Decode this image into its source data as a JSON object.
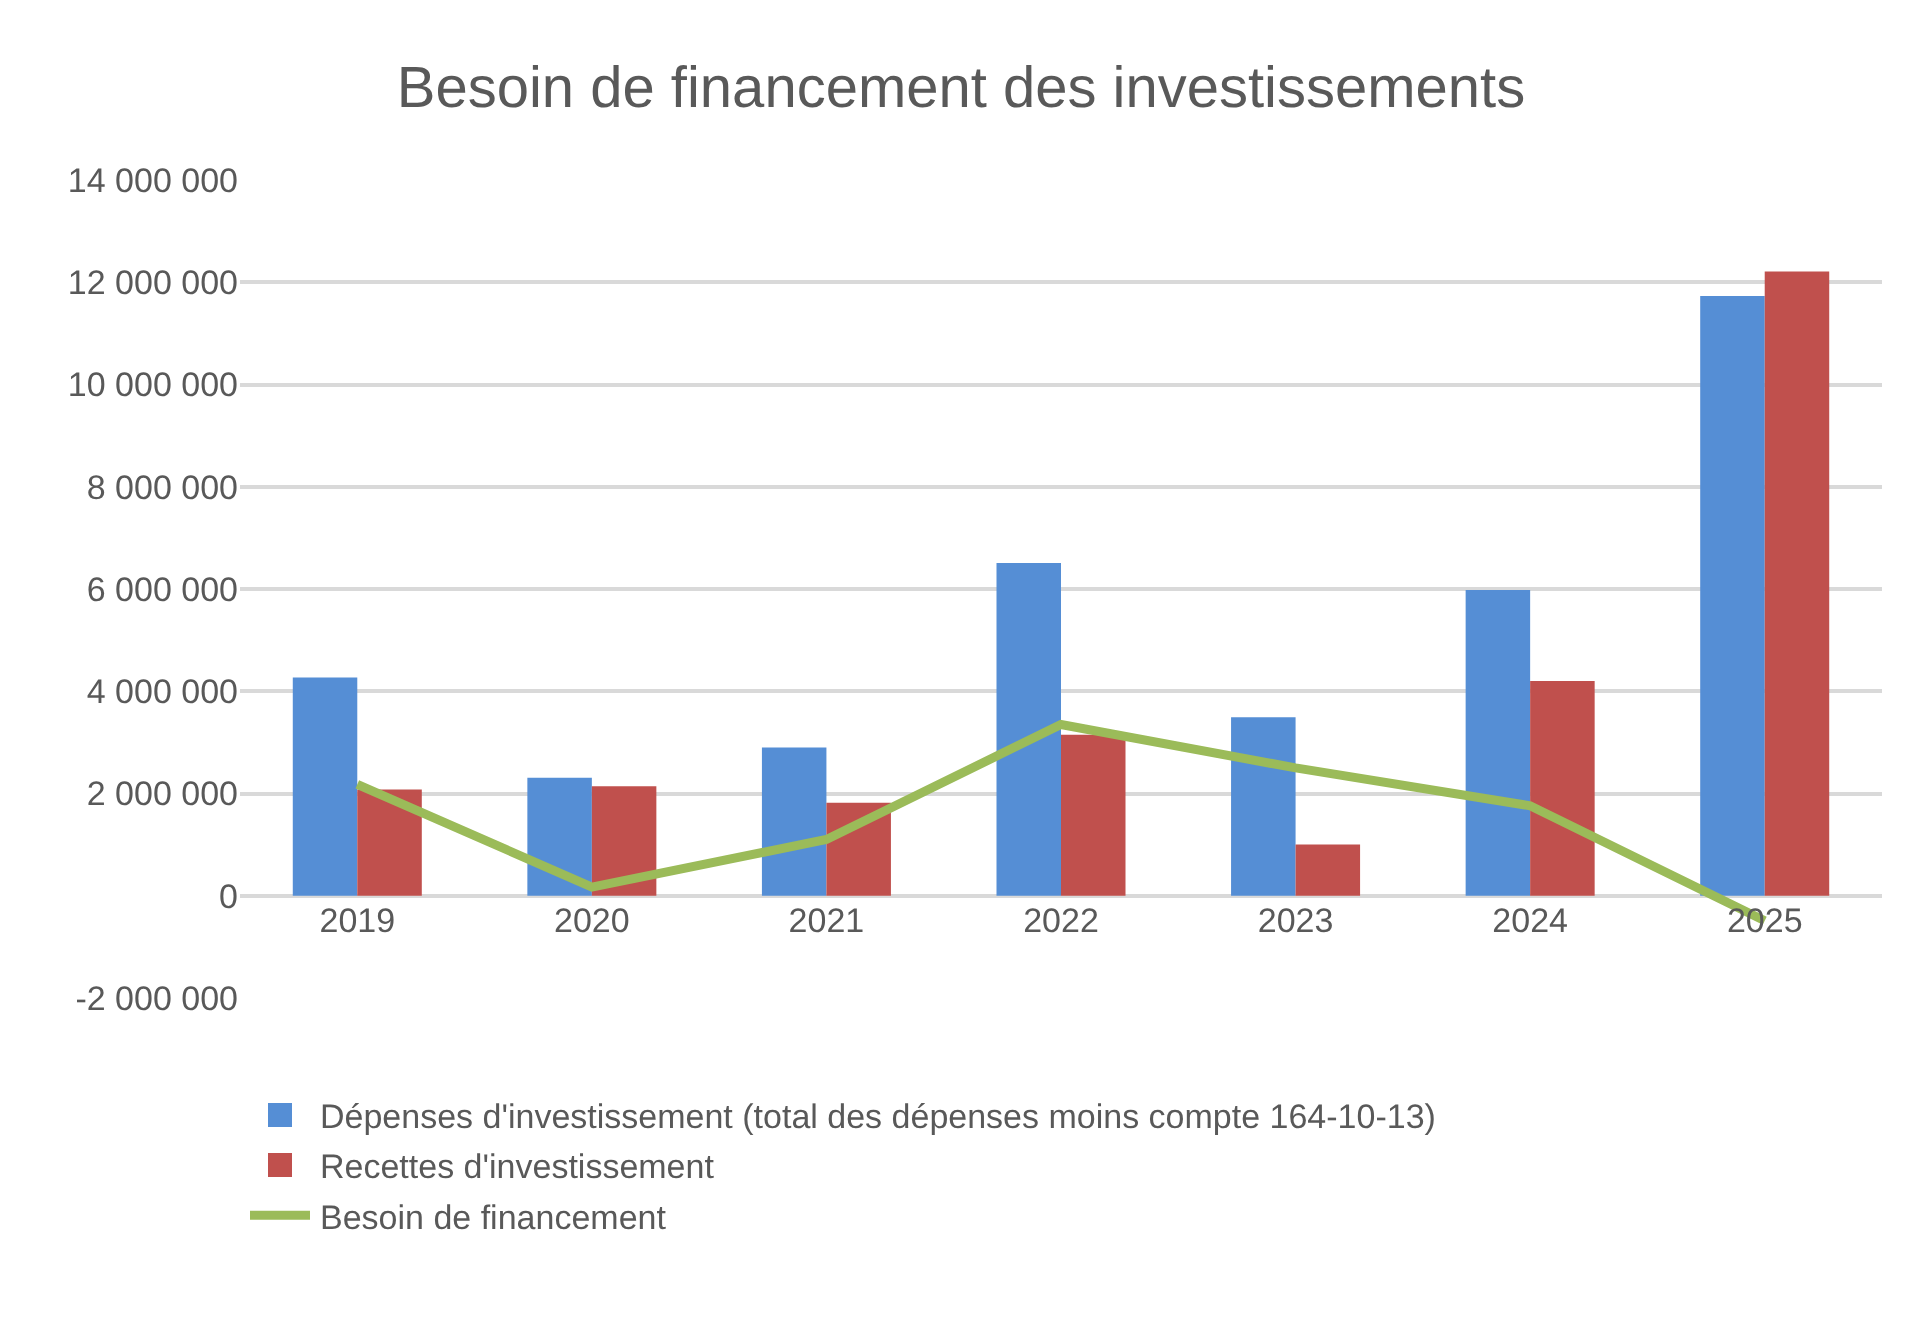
{
  "chart_data": {
    "type": "bar",
    "title": "Besoin de financement des investissements",
    "categories": [
      "2019",
      "2020",
      "2021",
      "2022",
      "2023",
      "2024",
      "2025"
    ],
    "series": [
      {
        "name": "Dépenses d'investissement (total des dépenses moins compte 164-10-13)",
        "color": "#558ed5",
        "values": [
          4270000,
          2310000,
          2900000,
          6510000,
          3490000,
          5980000,
          11730000
        ]
      },
      {
        "name": "Recettes d'investissement",
        "color": "#c0504d",
        "values": [
          2080000,
          2140000,
          1820000,
          3150000,
          1000000,
          4200000,
          12210000
        ]
      },
      {
        "name": "Besoin de financement",
        "type": "line",
        "color": "#9bbb59",
        "values": [
          2180000,
          170000,
          1100000,
          3350000,
          2500000,
          1760000,
          -490000
        ]
      }
    ],
    "ylim": [
      -2000000,
      14000000
    ],
    "yticks": [
      {
        "value": -2000000,
        "label": "-2 000 000"
      },
      {
        "value": 0,
        "label": "0"
      },
      {
        "value": 2000000,
        "label": "2 000 000"
      },
      {
        "value": 4000000,
        "label": "4 000 000"
      },
      {
        "value": 6000000,
        "label": "6 000 000"
      },
      {
        "value": 8000000,
        "label": "8 000 000"
      },
      {
        "value": 10000000,
        "label": "10 000 000"
      },
      {
        "value": 12000000,
        "label": "12 000 000"
      },
      {
        "value": 14000000,
        "label": "14 000 000"
      }
    ],
    "grid": "y",
    "legend": "bottom",
    "marker": "none"
  }
}
